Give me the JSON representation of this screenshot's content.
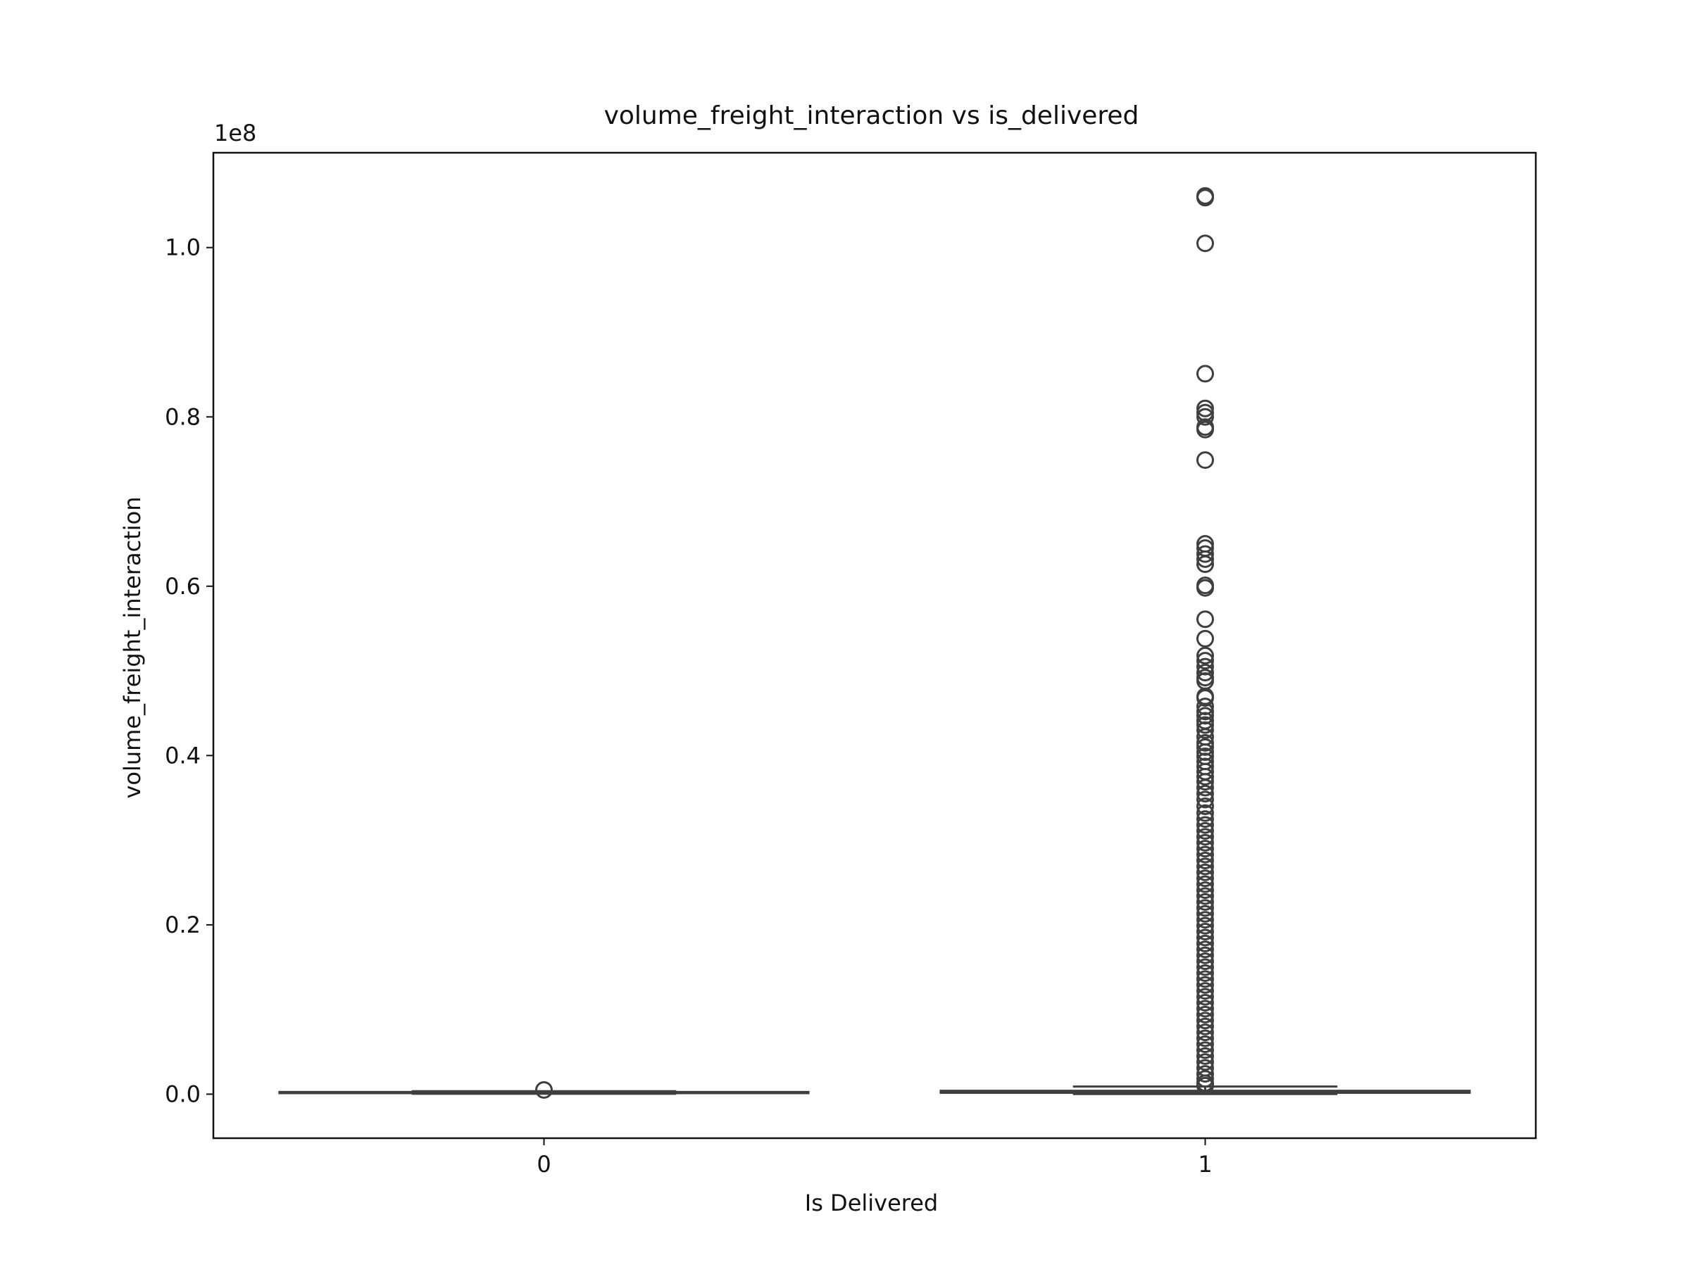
{
  "chart_data": {
    "type": "box",
    "title": "volume_freight_interaction vs is_delivered",
    "xlabel": "Is Delivered",
    "ylabel": "volume_freight_interaction",
    "y_offset_label": "1e8",
    "y_scale_factor": 100000000,
    "categories": [
      "0",
      "1"
    ],
    "ylim": [
      -0.052,
      1.112
    ],
    "yticks": [
      0.0,
      0.2,
      0.4,
      0.6,
      0.8,
      1.0
    ],
    "ytick_labels": [
      "0.0",
      "0.2",
      "0.4",
      "0.6",
      "0.8",
      "1.0"
    ],
    "grid": false,
    "box_color": "#3f3f3f",
    "boxes": [
      {
        "category": "0",
        "whisker_low": 0.0005,
        "q1": 0.0012,
        "median": 0.0018,
        "q3": 0.0026,
        "whisker_high": 0.0035,
        "outliers": [
          0.005
        ]
      },
      {
        "category": "1",
        "whisker_low": 0.0002,
        "q1": 0.0016,
        "median": 0.0032,
        "q3": 0.004,
        "whisker_high": 0.009,
        "outliers": [
          1.061,
          1.059,
          1.005,
          0.851,
          0.81,
          0.805,
          0.8,
          0.788,
          0.785,
          0.749,
          0.65,
          0.645,
          0.638,
          0.632,
          0.626,
          0.601,
          0.598,
          0.561,
          0.538,
          0.518,
          0.512,
          0.505,
          0.498,
          0.492,
          0.488,
          0.47,
          0.468,
          0.458,
          0.452,
          0.447,
          0.441,
          0.436,
          0.43,
          0.422,
          0.415,
          0.41,
          0.404,
          0.399,
          0.393,
          0.387,
          0.381,
          0.375,
          0.369,
          0.362,
          0.355,
          0.348,
          0.34,
          0.332,
          0.325,
          0.318,
          0.311,
          0.304,
          0.297,
          0.29,
          0.283,
          0.276,
          0.269,
          0.262,
          0.255,
          0.248,
          0.241,
          0.234,
          0.227,
          0.22,
          0.213,
          0.206,
          0.199,
          0.192,
          0.185,
          0.178,
          0.171,
          0.164,
          0.157,
          0.15,
          0.143,
          0.136,
          0.129,
          0.122,
          0.115,
          0.108,
          0.101,
          0.094,
          0.087,
          0.08,
          0.073,
          0.066,
          0.059,
          0.052,
          0.045,
          0.038,
          0.031,
          0.024,
          0.018,
          0.013,
          0.01
        ]
      }
    ]
  }
}
